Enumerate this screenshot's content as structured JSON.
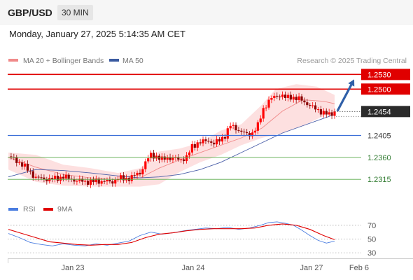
{
  "header": {
    "symbol": "GBP/USD",
    "interval": "30 MIN"
  },
  "datetime": "Monday, January 27, 2025 5:14:35 AM CET",
  "colors": {
    "resistance": "#e00000",
    "support_current": "#3b6fd8",
    "support": "#5aab4a",
    "candle_up": "#ff0000",
    "candle_down": "#8b0000",
    "bollinger_fill": "#fcd6d6",
    "ma20": "#f08a8a",
    "ma50": "#4a5ea8",
    "rsi": "#4a7de0",
    "rsi_ma": "#e00000",
    "arrow": "#2f5fa8",
    "price_box": "#2b2b2b"
  },
  "chart_data": {
    "type": "candlestick",
    "legend": [
      {
        "label": "MA 20 + Bollinger Bands",
        "color": "#f08a8a"
      },
      {
        "label": "MA 50",
        "color": "#3a5aa0"
      }
    ],
    "copyright": "Research © 2025 Trading Central",
    "ylim": [
      1.2288,
      1.2542
    ],
    "x_ticks": [
      "Jan 23",
      "Jan 24",
      "Jan 27",
      "Feb 6"
    ],
    "current_price": "1.2454",
    "levels": [
      {
        "value": 1.253,
        "label": "1.2530",
        "kind": "resistance"
      },
      {
        "value": 1.25,
        "label": "1.2500",
        "kind": "resistance"
      },
      {
        "value": 1.2405,
        "label": "1.2405",
        "kind": "pivot"
      },
      {
        "value": 1.236,
        "label": "1.2360",
        "kind": "support"
      },
      {
        "value": 1.2315,
        "label": "1.2315",
        "kind": "support"
      }
    ],
    "arrow": {
      "from": 1.2455,
      "to": 1.252
    },
    "price_path": [
      [
        0,
        1.2362
      ],
      [
        5,
        1.2355
      ],
      [
        10,
        1.2345
      ],
      [
        16,
        1.233
      ],
      [
        20,
        1.2318
      ],
      [
        30,
        1.2315
      ],
      [
        40,
        1.232
      ],
      [
        50,
        1.2312
      ],
      [
        60,
        1.231
      ],
      [
        70,
        1.2312
      ],
      [
        75,
        1.2308
      ],
      [
        80,
        1.2318
      ],
      [
        85,
        1.2315
      ],
      [
        90,
        1.232
      ],
      [
        96,
        1.2328
      ],
      [
        100,
        1.235
      ],
      [
        104,
        1.2365
      ],
      [
        108,
        1.2362
      ],
      [
        112,
        1.2355
      ],
      [
        116,
        1.236
      ],
      [
        120,
        1.2358
      ],
      [
        125,
        1.2355
      ],
      [
        130,
        1.236
      ],
      [
        134,
        1.2382
      ],
      [
        138,
        1.239
      ],
      [
        142,
        1.2392
      ],
      [
        146,
        1.2395
      ],
      [
        150,
        1.2388
      ],
      [
        154,
        1.2395
      ],
      [
        158,
        1.2405
      ],
      [
        162,
        1.2425
      ],
      [
        166,
        1.242
      ],
      [
        170,
        1.2412
      ],
      [
        174,
        1.2407
      ],
      [
        178,
        1.241
      ],
      [
        182,
        1.2425
      ],
      [
        186,
        1.246
      ],
      [
        190,
        1.2475
      ],
      [
        194,
        1.2485
      ],
      [
        198,
        1.2488
      ],
      [
        202,
        1.2482
      ],
      [
        206,
        1.2485
      ],
      [
        210,
        1.248
      ],
      [
        214,
        1.2478
      ],
      [
        218,
        1.247
      ],
      [
        222,
        1.2462
      ],
      [
        226,
        1.2458
      ],
      [
        230,
        1.245
      ],
      [
        234,
        1.2448
      ],
      [
        238,
        1.2454
      ]
    ],
    "ma20": [
      [
        0,
        1.236
      ],
      [
        20,
        1.234
      ],
      [
        40,
        1.2325
      ],
      [
        60,
        1.2318
      ],
      [
        80,
        1.2314
      ],
      [
        96,
        1.2318
      ],
      [
        110,
        1.2338
      ],
      [
        125,
        1.2355
      ],
      [
        140,
        1.237
      ],
      [
        155,
        1.2385
      ],
      [
        170,
        1.24
      ],
      [
        185,
        1.242
      ],
      [
        200,
        1.2455
      ],
      [
        215,
        1.2478
      ],
      [
        230,
        1.2475
      ],
      [
        238,
        1.247
      ]
    ],
    "bb_upper": [
      [
        0,
        1.237
      ],
      [
        20,
        1.2365
      ],
      [
        40,
        1.2345
      ],
      [
        60,
        1.2338
      ],
      [
        80,
        1.2328
      ],
      [
        96,
        1.2338
      ],
      [
        110,
        1.2372
      ],
      [
        125,
        1.2378
      ],
      [
        140,
        1.239
      ],
      [
        155,
        1.2415
      ],
      [
        170,
        1.2428
      ],
      [
        185,
        1.2468
      ],
      [
        195,
        1.25
      ],
      [
        210,
        1.251
      ],
      [
        225,
        1.2505
      ],
      [
        238,
        1.2488
      ]
    ],
    "bb_lower": [
      [
        0,
        1.2335
      ],
      [
        20,
        1.231
      ],
      [
        40,
        1.2302
      ],
      [
        60,
        1.23
      ],
      [
        80,
        1.23
      ],
      [
        96,
        1.23
      ],
      [
        110,
        1.2305
      ],
      [
        125,
        1.233
      ],
      [
        140,
        1.235
      ],
      [
        155,
        1.2365
      ],
      [
        170,
        1.2385
      ],
      [
        185,
        1.24
      ],
      [
        200,
        1.241
      ],
      [
        215,
        1.2425
      ],
      [
        230,
        1.2445
      ],
      [
        238,
        1.2452
      ]
    ],
    "ma50": [
      [
        0,
        1.232
      ],
      [
        20,
        1.2335
      ],
      [
        40,
        1.2333
      ],
      [
        60,
        1.2328
      ],
      [
        80,
        1.2322
      ],
      [
        96,
        1.2318
      ],
      [
        110,
        1.232
      ],
      [
        125,
        1.2325
      ],
      [
        140,
        1.2335
      ],
      [
        155,
        1.235
      ],
      [
        170,
        1.237
      ],
      [
        185,
        1.239
      ],
      [
        200,
        1.241
      ],
      [
        215,
        1.2425
      ],
      [
        230,
        1.244
      ],
      [
        238,
        1.2448
      ]
    ],
    "rsi_panel": {
      "legend": [
        {
          "label": "RSI",
          "color": "#4a7de0"
        },
        {
          "label": "9MA",
          "color": "#e00000"
        }
      ],
      "ylim": [
        25,
        80
      ],
      "ticks": [
        70,
        50,
        30
      ],
      "rsi": [
        [
          0,
          58
        ],
        [
          8,
          52
        ],
        [
          16,
          45
        ],
        [
          24,
          42
        ],
        [
          32,
          40
        ],
        [
          40,
          43
        ],
        [
          48,
          41
        ],
        [
          56,
          40
        ],
        [
          64,
          43
        ],
        [
          72,
          41
        ],
        [
          80,
          44
        ],
        [
          88,
          47
        ],
        [
          96,
          55
        ],
        [
          104,
          60
        ],
        [
          112,
          57
        ],
        [
          120,
          59
        ],
        [
          128,
          62
        ],
        [
          136,
          64
        ],
        [
          144,
          66
        ],
        [
          152,
          65
        ],
        [
          160,
          67
        ],
        [
          168,
          64
        ],
        [
          176,
          66
        ],
        [
          184,
          70
        ],
        [
          190,
          74
        ],
        [
          196,
          75
        ],
        [
          202,
          73
        ],
        [
          208,
          70
        ],
        [
          214,
          63
        ],
        [
          220,
          55
        ],
        [
          226,
          48
        ],
        [
          232,
          44
        ],
        [
          238,
          47
        ]
      ],
      "rsi_ma": [
        [
          0,
          64
        ],
        [
          10,
          58
        ],
        [
          20,
          52
        ],
        [
          30,
          46
        ],
        [
          40,
          44
        ],
        [
          50,
          42
        ],
        [
          60,
          41
        ],
        [
          70,
          42
        ],
        [
          80,
          42
        ],
        [
          90,
          45
        ],
        [
          100,
          52
        ],
        [
          110,
          57
        ],
        [
          120,
          59
        ],
        [
          130,
          62
        ],
        [
          140,
          64
        ],
        [
          150,
          65
        ],
        [
          160,
          65
        ],
        [
          170,
          65
        ],
        [
          180,
          66
        ],
        [
          190,
          70
        ],
        [
          200,
          72
        ],
        [
          210,
          70
        ],
        [
          220,
          64
        ],
        [
          230,
          55
        ],
        [
          238,
          49
        ]
      ]
    }
  }
}
